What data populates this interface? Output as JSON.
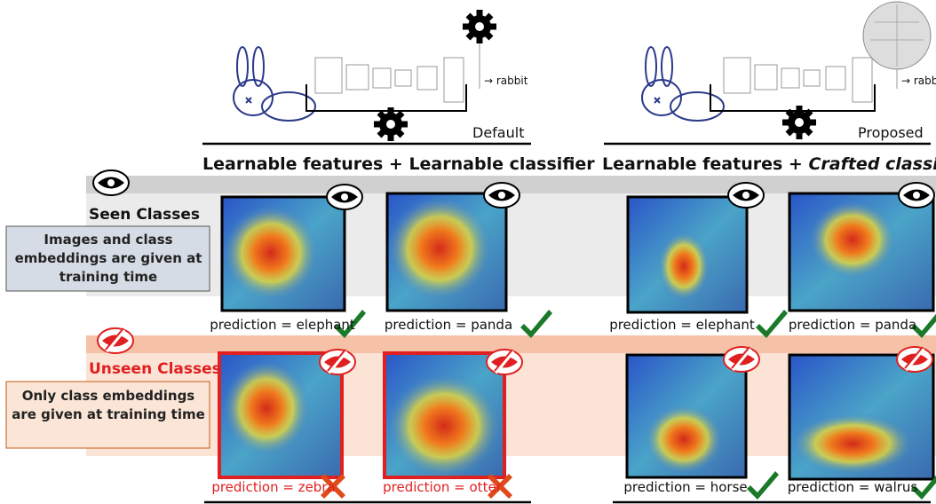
{
  "panels": [
    {
      "label": "Default",
      "network_output": "→ rabbit",
      "title": "Learnable features + Learnable classifier"
    },
    {
      "label": "Proposed",
      "network_output": "→ rabbit",
      "title_prefix": "Learnable features + ",
      "title_emphasis": "Crafted classifier"
    }
  ],
  "rows": [
    {
      "title": "Seen Classes",
      "description": "Images and class embeddings are given at training time",
      "predictions": [
        "prediction = elephant",
        "prediction = panda",
        "prediction = elephant",
        "prediction = panda"
      ]
    },
    {
      "title": "Unseen Classes",
      "description": "Only class embeddings are given at training time",
      "predictions": [
        "prediction = zebra",
        "prediction = otter",
        "prediction = horse",
        "prediction = walrus"
      ]
    }
  ]
}
